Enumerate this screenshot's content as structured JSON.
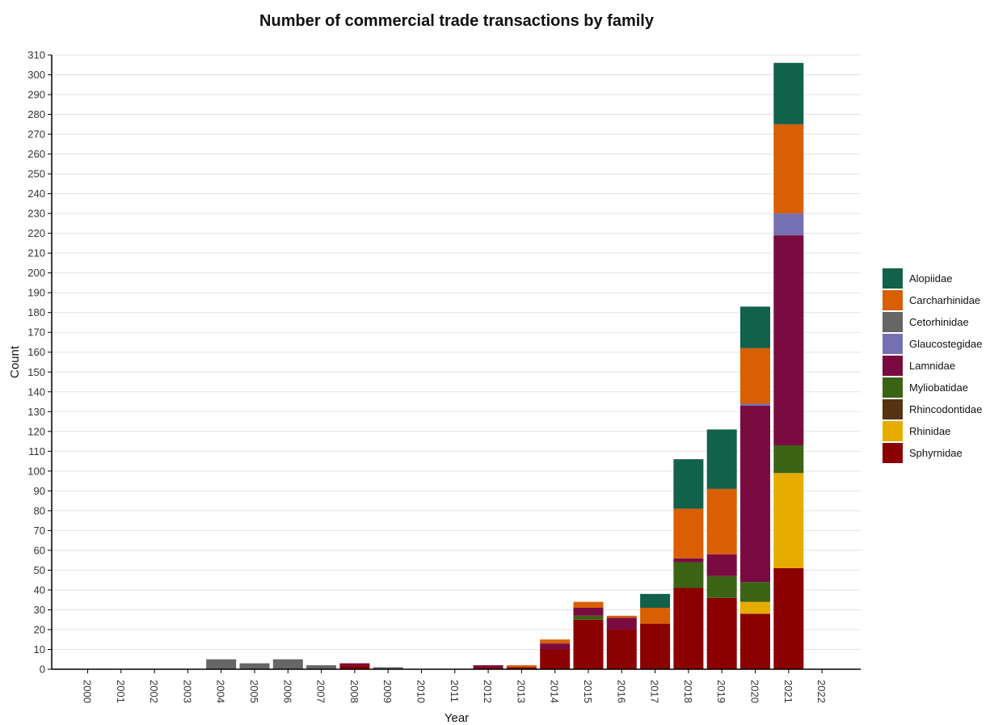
{
  "chart_data": {
    "type": "bar",
    "stacked": true,
    "title": "Number of commercial trade transactions by family",
    "xlabel": "Year",
    "ylabel": "Count",
    "ylim": [
      0,
      310
    ],
    "ytick_step": 10,
    "grid": true,
    "legend_position": "right",
    "categories": [
      "2000",
      "2001",
      "2002",
      "2003",
      "2004",
      "2005",
      "2006",
      "2007",
      "2008",
      "2009",
      "2010",
      "2011",
      "2012",
      "2013",
      "2014",
      "2015",
      "2016",
      "2017",
      "2018",
      "2019",
      "2020",
      "2021",
      "2022"
    ],
    "series": [
      {
        "name": "Sphyrnidae",
        "color": "#8b0000",
        "values": [
          0,
          0,
          0,
          0,
          0,
          0,
          0,
          0,
          2,
          0,
          0,
          0,
          1,
          1,
          10,
          25,
          20,
          23,
          41,
          36,
          28,
          51,
          0
        ]
      },
      {
        "name": "Rhinidae",
        "color": "#e6ac00",
        "values": [
          0,
          0,
          0,
          0,
          0,
          0,
          0,
          0,
          0,
          0,
          0,
          0,
          0,
          0,
          0,
          0,
          0,
          0,
          0,
          0,
          6,
          48,
          0
        ]
      },
      {
        "name": "Rhincodontidae",
        "color": "#553311",
        "values": [
          0,
          0,
          0,
          0,
          0,
          0,
          0,
          0,
          0,
          0,
          0,
          0,
          0,
          0,
          0,
          0,
          0,
          0,
          0,
          0,
          0,
          0,
          0
        ]
      },
      {
        "name": "Myliobatidae",
        "color": "#3b6314",
        "values": [
          0,
          0,
          0,
          0,
          0,
          0,
          0,
          0,
          0,
          0,
          0,
          0,
          0,
          0,
          0,
          2,
          0,
          0,
          13,
          11,
          10,
          14,
          0
        ]
      },
      {
        "name": "Lamnidae",
        "color": "#7a0b40",
        "values": [
          0,
          0,
          0,
          0,
          0,
          0,
          0,
          0,
          1,
          0,
          0,
          0,
          1,
          0,
          3,
          4,
          6,
          0,
          2,
          11,
          89,
          106,
          0
        ]
      },
      {
        "name": "Glaucostegidae",
        "color": "#7570b3",
        "values": [
          0,
          0,
          0,
          0,
          0,
          0,
          0,
          0,
          0,
          0,
          0,
          0,
          0,
          0,
          0,
          0,
          0,
          0,
          0,
          0,
          1,
          11,
          0
        ]
      },
      {
        "name": "Cetorhinidae",
        "color": "#666666",
        "values": [
          0,
          0,
          0,
          0,
          5,
          3,
          5,
          2,
          0,
          1,
          0,
          0,
          0,
          0,
          0,
          0,
          0,
          0,
          0,
          0,
          0,
          0,
          0
        ]
      },
      {
        "name": "Carcharhinidae",
        "color": "#d95f02",
        "values": [
          0,
          0,
          0,
          0,
          0,
          0,
          0,
          0,
          0,
          0,
          0,
          0,
          0,
          1,
          2,
          3,
          1,
          8,
          25,
          33,
          28,
          45,
          0
        ]
      },
      {
        "name": "Alopiidae",
        "color": "#12614a",
        "values": [
          0,
          0,
          0,
          0,
          0,
          0,
          0,
          0,
          0,
          0,
          0,
          0,
          0,
          0,
          0,
          0,
          0,
          7,
          25,
          30,
          21,
          31,
          0
        ]
      }
    ],
    "legend_order": [
      "Alopiidae",
      "Carcharhinidae",
      "Cetorhinidae",
      "Glaucostegidae",
      "Lamnidae",
      "Myliobatidae",
      "Rhincodontidae",
      "Rhinidae",
      "Sphyrnidae"
    ]
  }
}
